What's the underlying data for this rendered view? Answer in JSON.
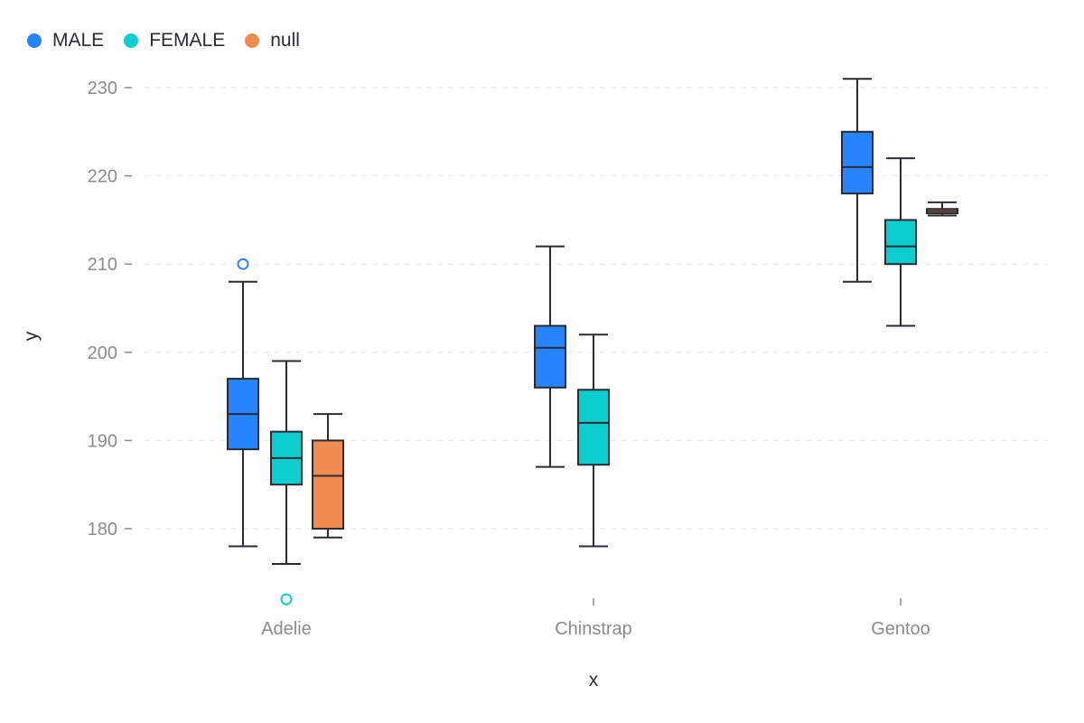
{
  "chart_data": {
    "type": "box",
    "xlabel": "x",
    "ylabel": "y",
    "categories": [
      "Adelie",
      "Chinstrap",
      "Gentoo"
    ],
    "ylim": [
      172,
      233
    ],
    "yticks": [
      180,
      190,
      200,
      210,
      220,
      230
    ],
    "grid": "horizontal dashed",
    "legend_position": "top-left",
    "series": [
      {
        "name": "MALE",
        "color": "#2684FF",
        "boxes": [
          {
            "category": "Adelie",
            "min": 178,
            "q1": 189,
            "median": 193,
            "q3": 197,
            "max": 208,
            "outliers": [
              210
            ]
          },
          {
            "category": "Chinstrap",
            "min": 187,
            "q1": 196,
            "median": 200.5,
            "q3": 203,
            "max": 212,
            "outliers": []
          },
          {
            "category": "Gentoo",
            "min": 208,
            "q1": 218,
            "median": 221,
            "q3": 225,
            "max": 231,
            "outliers": []
          }
        ]
      },
      {
        "name": "FEMALE",
        "color": "#0CCECE",
        "boxes": [
          {
            "category": "Adelie",
            "min": 176,
            "q1": 185,
            "median": 188,
            "q3": 191,
            "max": 199,
            "outliers": [
              172
            ]
          },
          {
            "category": "Chinstrap",
            "min": 178,
            "q1": 187.25,
            "median": 192,
            "q3": 195.75,
            "max": 202,
            "outliers": []
          },
          {
            "category": "Gentoo",
            "min": 203,
            "q1": 210,
            "median": 212,
            "q3": 215,
            "max": 222,
            "outliers": []
          }
        ]
      },
      {
        "name": "null",
        "color": "#F08C50",
        "boxes": [
          {
            "category": "Adelie",
            "min": 179,
            "q1": 180,
            "median": 186,
            "q3": 190,
            "max": 193,
            "outliers": []
          },
          {
            "category": "Gentoo",
            "min": 215.5,
            "q1": 215.75,
            "median": 216,
            "q3": 216.25,
            "max": 217,
            "outliers": []
          }
        ]
      }
    ]
  }
}
